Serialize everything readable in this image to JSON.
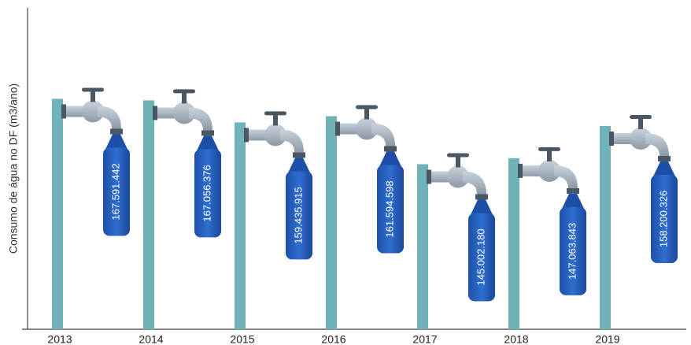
{
  "chart_data": {
    "type": "bar",
    "y_label": "Consumo de água no DF (m3/ano)",
    "categories": [
      "2013",
      "2014",
      "2015",
      "2016",
      "2017",
      "2018",
      "2019"
    ],
    "values": [
      167591442,
      167056376,
      159435915,
      161594598,
      145002180,
      147063843,
      158200326
    ],
    "value_labels": [
      "167.591.442",
      "167.056.376",
      "159.435.915",
      "161.594.598",
      "145.002.180",
      "147.063.843",
      "158.200.326"
    ],
    "color": "#6fb3b8",
    "ylim": [
      88000000,
      199000000
    ]
  }
}
